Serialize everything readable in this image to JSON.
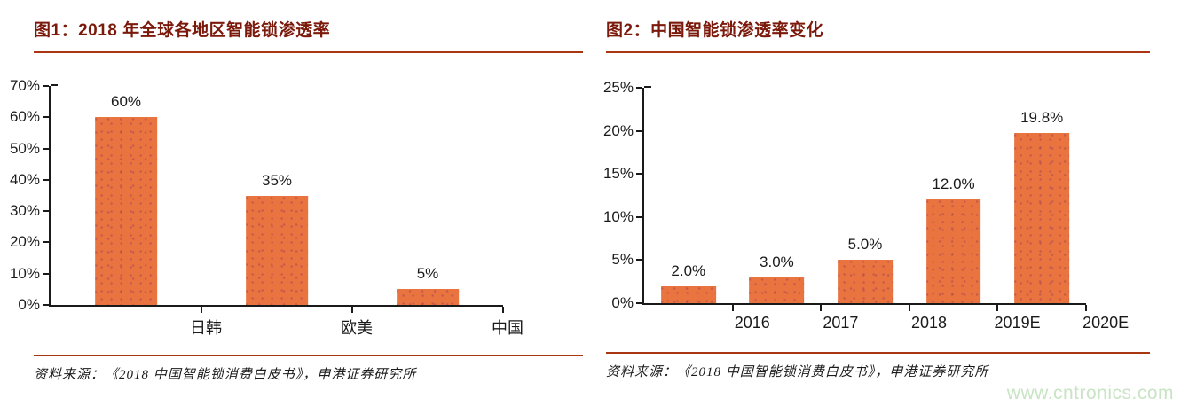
{
  "colors": {
    "bar": "#E97440",
    "bar_dot": "#A8425288",
    "title": "#7B190B",
    "rule": "#A93511",
    "axis": "#1A1A1A",
    "watermark": "#C9E4C5"
  },
  "watermark": {
    "text": "www.cntronics.com"
  },
  "chart_data": [
    {
      "type": "bar",
      "title": "图1：2018 年全球各地区智能锁渗透率",
      "categories": [
        "日韩",
        "欧美",
        "中国"
      ],
      "values": [
        60,
        35,
        5
      ],
      "value_labels": [
        "60%",
        "35%",
        "5%"
      ],
      "ylim": [
        0,
        70
      ],
      "ytick_step": 10,
      "ytick_labels": [
        "0%",
        "10%",
        "20%",
        "30%",
        "40%",
        "50%",
        "60%",
        "70%"
      ],
      "grid": false,
      "legend": null,
      "bar_width_frac": 0.41,
      "source": "资料来源：《2018 中国智能锁消费白皮书》，申港证券研究所"
    },
    {
      "type": "bar",
      "title": "图2：中国智能锁渗透率变化",
      "categories": [
        "2016",
        "2017",
        "2018",
        "2019E",
        "2020E"
      ],
      "values": [
        2.0,
        3.0,
        5.0,
        12.0,
        19.8
      ],
      "value_labels": [
        "2.0%",
        "3.0%",
        "5.0%",
        "12.0%",
        "19.8%"
      ],
      "ylim": [
        0,
        25
      ],
      "ytick_step": 5,
      "ytick_labels": [
        "0%",
        "5%",
        "10%",
        "15%",
        "20%",
        "25%"
      ],
      "grid": false,
      "legend": null,
      "bar_width_frac": 0.62,
      "source": "资料来源：《2018 中国智能锁消费白皮书》，申港证券研究所"
    }
  ]
}
